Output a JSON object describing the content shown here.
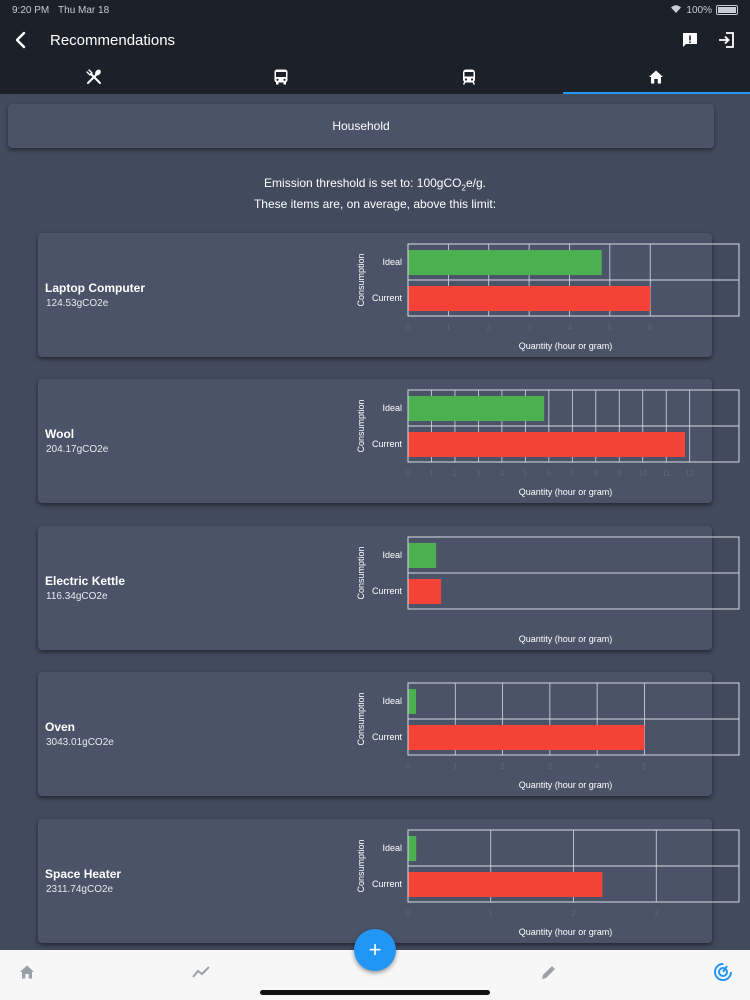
{
  "status_bar": {
    "time": "9:20 PM",
    "date": "Thu Mar 18",
    "battery": "100%"
  },
  "header": {
    "title": "Recommendations"
  },
  "tabs": [
    {
      "icon": "utensils-icon",
      "active": false
    },
    {
      "icon": "bus-icon",
      "active": false
    },
    {
      "icon": "train-icon",
      "active": false
    },
    {
      "icon": "home-icon",
      "active": true
    }
  ],
  "category": {
    "label": "Household"
  },
  "threshold": {
    "line1_prefix": "Emission threshold is set to: 100gCO",
    "line1_sub": "2",
    "line1_suffix": "e/g.",
    "line2": "These items are, on average, above this limit:"
  },
  "items": [
    {
      "name": "Laptop Computer",
      "emission": "124.53gCO2e",
      "chart_data": {
        "type": "bar",
        "orientation": "horizontal",
        "categories": [
          "Ideal",
          "Current"
        ],
        "values": [
          4.8,
          6
        ],
        "xticks": [
          "0",
          "1",
          "2",
          "3",
          "4",
          "5",
          "6"
        ],
        "xlim": [
          0,
          8.2
        ],
        "xlabel": "Quantity (hour or gram)",
        "ylabel": "Consumption"
      }
    },
    {
      "name": "Wool",
      "emission": "204.17gCO2e",
      "chart_data": {
        "type": "bar",
        "orientation": "horizontal",
        "categories": [
          "Ideal",
          "Current"
        ],
        "values": [
          5.8,
          11.8
        ],
        "xticks": [
          "0",
          "1",
          "2",
          "3",
          "4",
          "5",
          "6",
          "7",
          "8",
          "9",
          "10",
          "11",
          "12"
        ],
        "xlim": [
          0,
          14.1
        ],
        "xlabel": "Quantity (hour or gram)",
        "ylabel": "Consumption"
      }
    },
    {
      "name": "Electric Kettle",
      "emission": "116.34gCO2e",
      "chart_data": {
        "type": "bar",
        "orientation": "horizontal",
        "categories": [
          "Ideal",
          "Current"
        ],
        "values": [
          0.085,
          0.1
        ],
        "xticks": [],
        "xlim": [
          0,
          1
        ],
        "xlabel": "Quantity (hour or gram)",
        "ylabel": "Consumption"
      }
    },
    {
      "name": "Oven",
      "emission": "3043.01gCO2e",
      "chart_data": {
        "type": "bar",
        "orientation": "horizontal",
        "categories": [
          "Ideal",
          "Current"
        ],
        "values": [
          0.17,
          5
        ],
        "xticks": [
          "0",
          "1",
          "2",
          "3",
          "4",
          "5"
        ],
        "xlim": [
          0,
          7
        ],
        "xlabel": "Quantity (hour or gram)",
        "ylabel": "Consumption"
      }
    },
    {
      "name": "Space Heater",
      "emission": "2311.74gCO2e",
      "chart_data": {
        "type": "bar",
        "orientation": "horizontal",
        "categories": [
          "Ideal",
          "Current"
        ],
        "values": [
          0.1,
          2.35
        ],
        "xticks": [
          "0",
          "1",
          "2",
          "3"
        ],
        "xlim": [
          0,
          4
        ],
        "xlabel": "Quantity (hour or gram)",
        "ylabel": "Consumption"
      }
    }
  ],
  "bottom_nav": [
    {
      "icon": "home-icon"
    },
    {
      "icon": "trend-chart-icon"
    },
    {
      "icon": "pencil-icon"
    },
    {
      "icon": "power-gauge-icon"
    }
  ],
  "fab": {
    "label": "+"
  },
  "colors": {
    "ideal": "#4caf50",
    "current": "#f44336",
    "accent": "#2196f3"
  }
}
